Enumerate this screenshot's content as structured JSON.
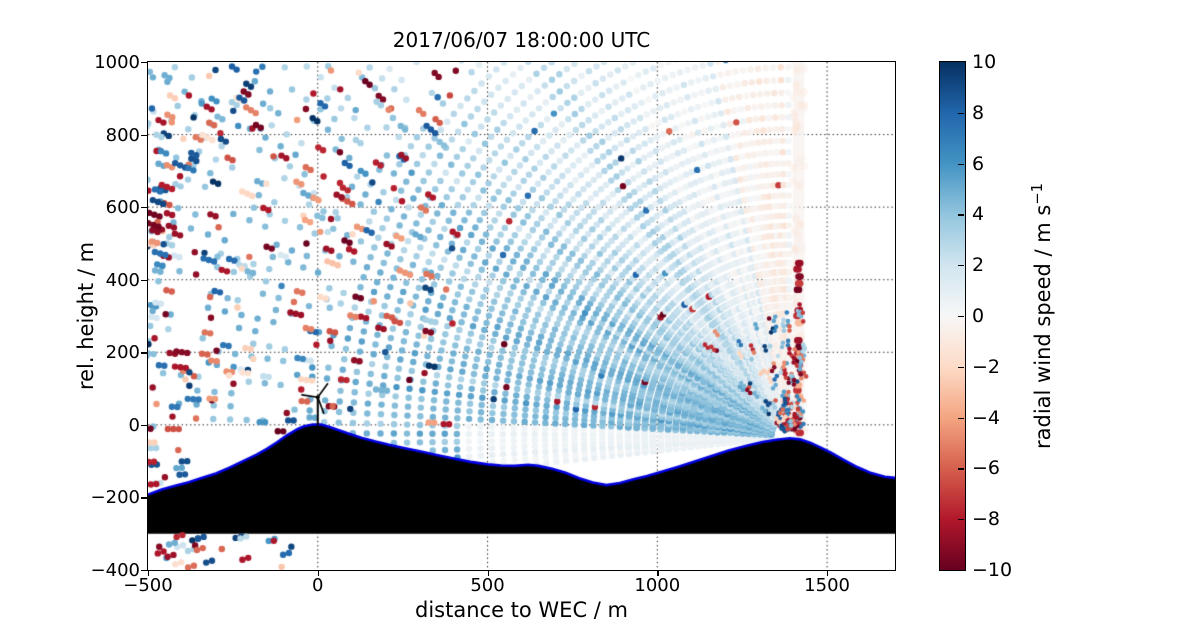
{
  "title": "2017/06/07 18:00:00 UTC",
  "axes": {
    "xlabel": "distance to WEC / m",
    "ylabel": "rel. height / m",
    "xlim": [
      -500,
      1700
    ],
    "ylim": [
      -400,
      1000
    ],
    "xticks": [
      {
        "v": -500,
        "label": "−500"
      },
      {
        "v": 0,
        "label": "0"
      },
      {
        "v": 500,
        "label": "500"
      },
      {
        "v": 1000,
        "label": "1000"
      },
      {
        "v": 1500,
        "label": "1500"
      }
    ],
    "yticks": [
      {
        "v": 1000,
        "label": "1000"
      },
      {
        "v": 800,
        "label": "800"
      },
      {
        "v": 600,
        "label": "600"
      },
      {
        "v": 400,
        "label": "400"
      },
      {
        "v": 200,
        "label": "200"
      },
      {
        "v": 0,
        "label": "0"
      },
      {
        "v": -200,
        "label": "−200"
      },
      {
        "v": -400,
        "label": "−400"
      }
    ],
    "grid": {
      "show": true,
      "style": "dotted",
      "color": "rgba(0,0,0,0.85)"
    }
  },
  "colorbar": {
    "label": "radial wind speed / m s",
    "label_sup": "−1",
    "vmin": -10,
    "vmax": 10,
    "ticks": [
      {
        "v": 10,
        "label": "10"
      },
      {
        "v": 8,
        "label": "8"
      },
      {
        "v": 6,
        "label": "6"
      },
      {
        "v": 4,
        "label": "4"
      },
      {
        "v": 2,
        "label": "2"
      },
      {
        "v": 0,
        "label": "0"
      },
      {
        "v": -2,
        "label": "−2"
      },
      {
        "v": -4,
        "label": "−4"
      },
      {
        "v": -6,
        "label": "−6"
      },
      {
        "v": -8,
        "label": "−8"
      },
      {
        "v": -10,
        "label": "−10"
      }
    ],
    "colors": [
      "#67001f",
      "#b2182b",
      "#d6604d",
      "#f4a582",
      "#fddbc7",
      "#f7f7f7",
      "#d1e5f0",
      "#92c5de",
      "#4393c3",
      "#2166ac",
      "#053061"
    ]
  },
  "chart_data": {
    "type": "scatter",
    "description": "Scanning Doppler lidar RHI measurement of radial wind speed (m/s, RdBu colormap, −10 to +10) over a terrain cross-section. A wind turbine (WEC) stands on the first hill top at x = 0 m, rel. height 0 m. The lidar sits on a second hill at x ≈ 1390 m, scanning a fan of beams from near-horizontal (pointing left over the turbine) up to vertical. Mostly light-blue positive radial velocities (~1–4 m/s) along the beams, a pale vertical stare band with a column of strong negative (dark red) returns directly above the lidar, and scattered hard-target/noise outliers (dark red / dark blue dots) mainly in the left half and below the terrain base.",
    "terrain_profile": [
      [
        -500,
        -192
      ],
      [
        -460,
        -178
      ],
      [
        -420,
        -168
      ],
      [
        -380,
        -158
      ],
      [
        -340,
        -146
      ],
      [
        -300,
        -134
      ],
      [
        -260,
        -118
      ],
      [
        -220,
        -100
      ],
      [
        -180,
        -82
      ],
      [
        -150,
        -66
      ],
      [
        -120,
        -48
      ],
      [
        -90,
        -28
      ],
      [
        -60,
        -12
      ],
      [
        -40,
        -4
      ],
      [
        -15,
        1
      ],
      [
        10,
        1
      ],
      [
        35,
        -6
      ],
      [
        60,
        -14
      ],
      [
        90,
        -24
      ],
      [
        130,
        -36
      ],
      [
        170,
        -46
      ],
      [
        210,
        -55
      ],
      [
        250,
        -63
      ],
      [
        300,
        -73
      ],
      [
        350,
        -83
      ],
      [
        400,
        -93
      ],
      [
        450,
        -102
      ],
      [
        500,
        -109
      ],
      [
        540,
        -112
      ],
      [
        580,
        -113
      ],
      [
        620,
        -110
      ],
      [
        650,
        -113
      ],
      [
        690,
        -121
      ],
      [
        730,
        -132
      ],
      [
        770,
        -147
      ],
      [
        810,
        -159
      ],
      [
        850,
        -166
      ],
      [
        890,
        -160
      ],
      [
        930,
        -150
      ],
      [
        970,
        -141
      ],
      [
        1010,
        -130
      ],
      [
        1060,
        -116
      ],
      [
        1110,
        -101
      ],
      [
        1160,
        -86
      ],
      [
        1210,
        -71
      ],
      [
        1260,
        -58
      ],
      [
        1310,
        -47
      ],
      [
        1350,
        -41
      ],
      [
        1390,
        -37
      ],
      [
        1420,
        -40
      ],
      [
        1450,
        -49
      ],
      [
        1480,
        -62
      ],
      [
        1510,
        -76
      ],
      [
        1550,
        -97
      ],
      [
        1590,
        -117
      ],
      [
        1630,
        -133
      ],
      [
        1670,
        -143
      ],
      [
        1700,
        -146
      ]
    ],
    "terrain_base": -300,
    "terrain_fill": "#000000",
    "terrain_edge": "#0000e0",
    "turbine": {
      "x": 0,
      "base_height": 1,
      "hub_height": 76,
      "blade_length": 47,
      "blade_angles_deg": [
        38,
        158,
        278
      ],
      "color": "#000000"
    },
    "lidar": {
      "x": 1390,
      "y": -30
    },
    "scan": {
      "elevation_min_deg": -6,
      "elevation_step_deg": 1.26,
      "n_rays": 78,
      "gate_start_m": 55,
      "max_range_m": 2700,
      "peak_radial_speed": 4.3,
      "dash_onset_range_m": 1250
    },
    "stare_band": {
      "x0": 1400,
      "x1": 1433,
      "value": -0.4
    },
    "stare_column": {
      "x": 1416,
      "y_min": -22,
      "y_max": 485,
      "value_min": -10,
      "value_max": -6.8
    },
    "near_lidar_speckle": {
      "count": 200,
      "max_range_m": 360
    },
    "noise_dots": {
      "count": 270,
      "x_min": -500,
      "x_max": 410,
      "y_max": 990
    },
    "subsurface_dots": {
      "count": 24,
      "x_min": -505,
      "x_max": -75,
      "y_min": -396,
      "y_max": -308
    },
    "dot_radius_px": 3.2,
    "seed": 20170607
  }
}
